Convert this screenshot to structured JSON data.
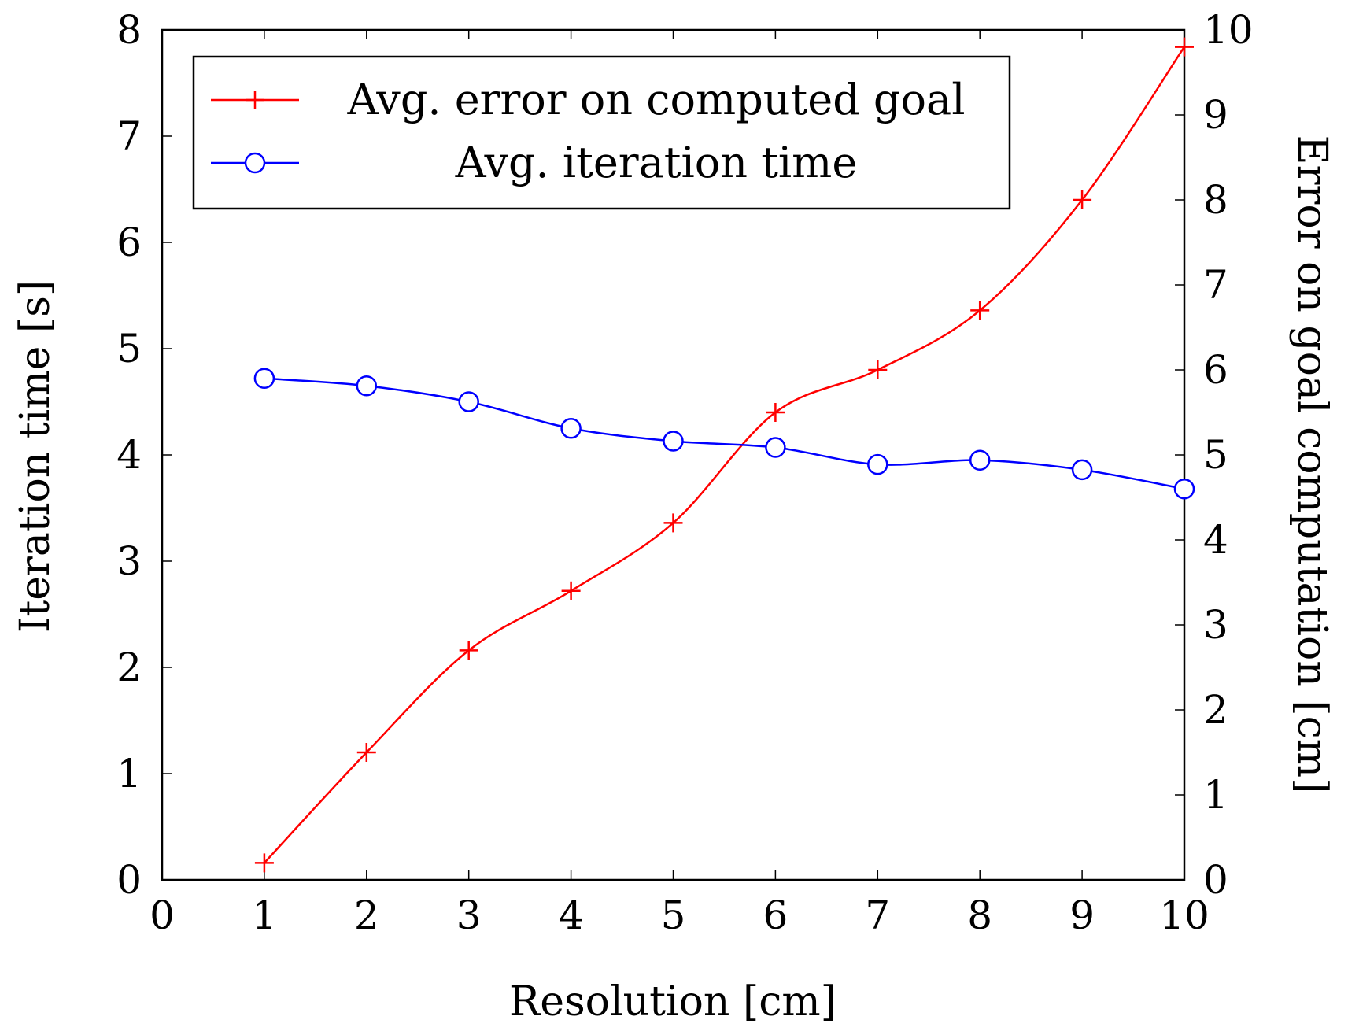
{
  "chart_data": {
    "type": "line",
    "title": "",
    "xlabel": "Resolution [cm]",
    "ylabel": "Iteration time [s]",
    "ylabel_right": "Error on goal computation [cm]",
    "xlim": [
      0,
      10
    ],
    "ylim": [
      0,
      8
    ],
    "ylim_right": [
      0,
      10
    ],
    "x_ticks": [
      0,
      1,
      2,
      3,
      4,
      5,
      6,
      7,
      8,
      9,
      10
    ],
    "x_tick_labels": [
      "0",
      "1",
      "2",
      "3",
      "4",
      "5",
      "6",
      "7",
      "8",
      "9",
      "10"
    ],
    "y_ticks": [
      0,
      1,
      2,
      3,
      4,
      5,
      6,
      7,
      8
    ],
    "y_tick_labels": [
      "0",
      "1",
      "2",
      "3",
      "4",
      "5",
      "6",
      "7",
      "8"
    ],
    "y_right_ticks": [
      0,
      1,
      2,
      3,
      4,
      5,
      6,
      7,
      8,
      9,
      10
    ],
    "y_right_tick_labels": [
      "0",
      "1",
      "2",
      "3",
      "4",
      "5",
      "6",
      "7",
      "8",
      "9",
      "10"
    ],
    "grid": false,
    "legend_position": "top-left",
    "series": [
      {
        "name": "Avg. error on computed goal",
        "axis": "right",
        "color": "#ff0000",
        "marker": "plus",
        "x": [
          1,
          2,
          3,
          4,
          5,
          6,
          7,
          8,
          9,
          10
        ],
        "values": [
          0.2,
          1.5,
          2.7,
          3.4,
          4.2,
          5.5,
          6.0,
          6.7,
          8.0,
          9.8
        ]
      },
      {
        "name": "Avg. iteration time",
        "axis": "left",
        "color": "#0000ff",
        "marker": "circle",
        "x": [
          1,
          2,
          3,
          4,
          5,
          6,
          7,
          8,
          9,
          10
        ],
        "values": [
          4.72,
          4.65,
          4.5,
          4.25,
          4.13,
          4.07,
          3.91,
          3.95,
          3.86,
          3.68
        ]
      }
    ]
  }
}
